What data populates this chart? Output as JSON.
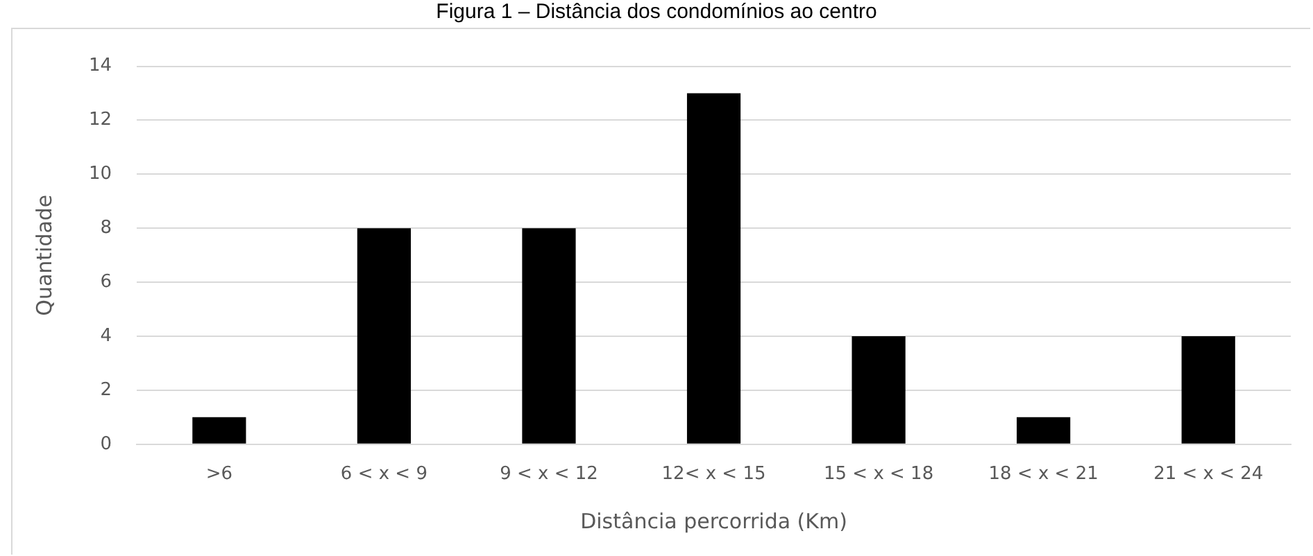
{
  "chart_data": {
    "type": "bar",
    "title": "Figura 1 – Distância dos condomínios ao centro",
    "xlabel": "Distância percorrida (Km)",
    "ylabel": "Quantidade",
    "categories": [
      ">6",
      "6 < x < 9",
      "9 < x < 12",
      "12< x < 15",
      "15 < x < 18",
      "18 < x < 21",
      "21 < x < 24"
    ],
    "values": [
      1,
      8,
      8,
      13,
      4,
      1,
      4
    ],
    "color": "#000000",
    "ylim": [
      0,
      14
    ],
    "yticks": [
      0,
      2,
      4,
      6,
      8,
      10,
      12,
      14
    ],
    "grid": "y"
  }
}
